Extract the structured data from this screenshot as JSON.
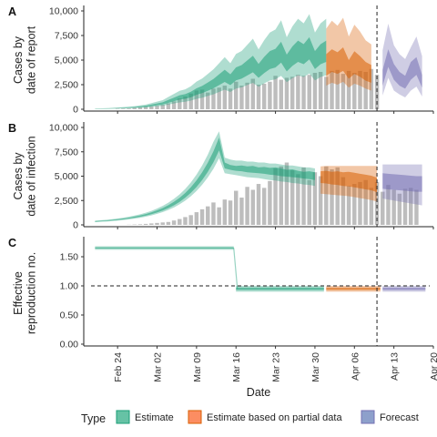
{
  "chart_data": {
    "type": "bar+area",
    "xlabel": "Date",
    "x_ticks": [
      "Feb 24",
      "Mar 02",
      "Mar 09",
      "Mar 16",
      "Mar 23",
      "Mar 30",
      "Apr 06",
      "Apr 13",
      "Apr 20"
    ],
    "x_range": {
      "start": "2020-02-18",
      "end": "2020-04-20"
    },
    "x_ticks_dates": [
      "2020-02-24",
      "2020-03-02",
      "2020-03-09",
      "2020-03-16",
      "2020-03-23",
      "2020-03-30",
      "2020-04-06",
      "2020-04-13",
      "2020-04-20"
    ],
    "forecast_start_line": "2020-04-10",
    "legend": {
      "title": "Type",
      "position": "bottom",
      "items": [
        {
          "label": "Estimate",
          "color": "#66c2a5",
          "border": "#1b9e77"
        },
        {
          "label": "Estimate based on partial data",
          "color": "#fc8d62",
          "border": "#d95f02"
        },
        {
          "label": "Forecast",
          "color": "#8da0cb",
          "border": "#7570b3"
        }
      ]
    },
    "colors": {
      "estimate": "#1b9e77",
      "partial": "#d95f02",
      "forecast": "#7570b3",
      "bars": "#bdbdbd"
    },
    "panels": [
      {
        "tag": "A",
        "ylabel": [
          "Cases by",
          "date of report"
        ],
        "ylim": [
          0,
          10000
        ],
        "y_ticks": [
          0,
          2500,
          5000,
          7500,
          10000
        ],
        "y_tick_labels": [
          "0",
          "2,500",
          "5,000",
          "7,500",
          "10,000"
        ],
        "bars": {
          "start": "2020-02-24",
          "values": [
            40,
            60,
            80,
            150,
            200,
            250,
            300,
            350,
            450,
            600,
            800,
            1100,
            1300,
            1600,
            1900,
            2000,
            1700,
            2100,
            2200,
            2400,
            2100,
            2800,
            2400,
            2700,
            3100,
            2500,
            2600,
            2800,
            3400,
            3000,
            3200,
            3300,
            3500,
            3400,
            3500,
            3700,
            3800,
            3300,
            3900,
            4000,
            3600,
            3900,
            3700,
            3900,
            3800,
            4100,
            3500
          ]
        },
        "series": [
          {
            "type": "estimate",
            "start": "2020-02-20",
            "median": [
              50,
              60,
              70,
              90,
              110,
              140,
              170,
              200,
              250,
              300,
              400,
              500,
              600,
              800,
              1000,
              1200,
              1300,
              1500,
              1800,
              2000,
              2300,
              2600,
              3000,
              3400,
              3000,
              3600,
              3800,
              4200,
              4600,
              3900,
              4500,
              5000,
              5200,
              5800,
              4700,
              5400,
              5900,
              5600,
              6200,
              5000,
              5600,
              5900
            ],
            "q25": [
              40,
              50,
              60,
              75,
              90,
              115,
              140,
              165,
              205,
              245,
              330,
              410,
              490,
              650,
              820,
              980,
              1060,
              1220,
              1470,
              1640,
              1880,
              2130,
              2450,
              2780,
              2450,
              2940,
              3110,
              3440,
              3760,
              3190,
              3680,
              4090,
              4250,
              4740,
              3840,
              4410,
              4820,
              4580,
              5070,
              4090,
              4580,
              4820
            ],
            "q75": [
              60,
              70,
              80,
              105,
              130,
              165,
              200,
              235,
              295,
              355,
              470,
              590,
              710,
              950,
              1180,
              1420,
              1540,
              1780,
              2130,
              2370,
              2720,
              3080,
              3550,
              4020,
              3550,
              4260,
              4490,
              4960,
              5440,
              4610,
              5320,
              5910,
              6150,
              6860,
              5560,
              6390,
              6980,
              6620,
              7330,
              5910,
              6620,
              6980
            ],
            "lo": [
              30,
              35,
              40,
              55,
              65,
              80,
              100,
              115,
              145,
              175,
              235,
              295,
              350,
              470,
              585,
              700,
              760,
              880,
              1050,
              1170,
              1350,
              1520,
              1760,
              1990,
              1760,
              2110,
              2220,
              2460,
              2690,
              2280,
              2630,
              2930,
              3040,
              3390,
              2750,
              3160,
              3450,
              3280,
              3630,
              2930,
              3280,
              3450
            ],
            "hi": [
              80,
              95,
              110,
              140,
              170,
              220,
              265,
              310,
              390,
              470,
              620,
              780,
              930,
              1250,
              1560,
              1870,
              2020,
              2340,
              2810,
              3120,
              3590,
              4060,
              4680,
              5300,
              4680,
              5620,
              5930,
              6550,
              7180,
              6090,
              7020,
              7800,
              8110,
              9050,
              7330,
              8420,
              9200,
              8740,
              9670,
              7800,
              8740,
              9200
            ]
          },
          {
            "type": "partial",
            "start": "2020-04-01",
            "median": [
              4400,
              4900,
              4600,
              5100,
              4000,
              4700,
              4300,
              3800,
              3500
            ],
            "q25": [
              3400,
              3800,
              3600,
              3900,
              3100,
              3600,
              3300,
              2900,
              2700
            ],
            "q75": [
              5600,
              6100,
              5800,
              6300,
              5000,
              5900,
              5400,
              4800,
              4500
            ],
            "lo": [
              2400,
              2700,
              2500,
              2800,
              2200,
              2600,
              2400,
              2100,
              1900
            ],
            "hi": [
              8200,
              9000,
              8500,
              9300,
              7400,
              8600,
              7900,
              7000,
              6600
            ]
          },
          {
            "type": "forecast",
            "start": "2020-04-11",
            "median": [
              3200,
              5200,
              3800,
              3000,
              2700,
              3900,
              4400,
              2800
            ],
            "q25": [
              2400,
              4300,
              3000,
              2400,
              2100,
              3000,
              3500,
              2200
            ],
            "q75": [
              4000,
              6100,
              4600,
              3800,
              3400,
              4800,
              5300,
              3500
            ],
            "lo": [
              1400,
              3200,
              1900,
              1500,
              1200,
              1900,
              2300,
              1300
            ],
            "hi": [
              6000,
              8700,
              6500,
              5600,
              5100,
              6300,
              7400,
              5400
            ]
          }
        ]
      },
      {
        "tag": "B",
        "ylabel": [
          "Cases by",
          "date of infection"
        ],
        "ylim": [
          0,
          10000
        ],
        "y_ticks": [
          0,
          2500,
          5000,
          7500,
          10000
        ],
        "y_tick_labels": [
          "0",
          "2,500",
          "5,000",
          "7,500",
          "10,000"
        ],
        "bars": {
          "start": "2020-02-26",
          "values": [
            20,
            40,
            60,
            100,
            150,
            200,
            250,
            300,
            450,
            600,
            800,
            1000,
            1300,
            1600,
            1900,
            2300,
            1800,
            2600,
            2500,
            3500,
            2800,
            3900,
            3600,
            4200,
            3800,
            4500,
            5800,
            6000,
            6400,
            5600,
            5200,
            5900,
            4600,
            5400,
            5000,
            6000,
            5700,
            5900,
            4900,
            4000,
            4200,
            4400,
            4600,
            3800,
            4400,
            3400,
            4100,
            3600,
            3200,
            3700,
            3800,
            3600
          ]
        },
        "series": [
          {
            "type": "estimate",
            "start": "2020-02-20",
            "median": [
              350,
              390,
              430,
              480,
              540,
              610,
              690,
              790,
              900,
              1030,
              1190,
              1380,
              1600,
              1870,
              2190,
              2570,
              3030,
              3580,
              4230,
              5000,
              5910,
              6990,
              8300,
              6100,
              5900,
              5800,
              5800,
              5700,
              5700,
              5600,
              5600,
              5500,
              5500,
              5400,
              5300,
              5300,
              5200,
              5100,
              5100,
              5000
            ],
            "q25": [
              320,
              360,
              400,
              440,
              500,
              560,
              640,
              730,
              830,
              950,
              1100,
              1270,
              1470,
              1720,
              2010,
              2360,
              2790,
              3290,
              3890,
              4600,
              5440,
              6430,
              7640,
              5800,
              5650,
              5550,
              5500,
              5400,
              5350,
              5300,
              5250,
              5150,
              5100,
              5000,
              4950,
              4900,
              4850,
              4750,
              4700,
              4600
            ],
            "q75": [
              380,
              420,
              460,
              520,
              580,
              660,
              740,
              850,
              970,
              1110,
              1280,
              1490,
              1730,
              2020,
              2370,
              2780,
              3270,
              3870,
              4570,
              5400,
              6380,
              7550,
              8960,
              6400,
              6150,
              6050,
              6100,
              6000,
              6050,
              5900,
              5950,
              5850,
              5900,
              5800,
              5650,
              5700,
              5550,
              5450,
              5500,
              5400
            ],
            "lo": [
              280,
              310,
              340,
              380,
              430,
              490,
              560,
              640,
              730,
              840,
              970,
              1130,
              1310,
              1530,
              1790,
              2110,
              2490,
              2940,
              3480,
              4120,
              4870,
              5760,
              6850,
              5300,
              5200,
              5100,
              5000,
              4900,
              4850,
              4800,
              4700,
              4600,
              4550,
              4450,
              4400,
              4300,
              4250,
              4150,
              4100,
              4000
            ],
            "hi": [
              430,
              480,
              530,
              590,
              660,
              740,
              840,
              960,
              1090,
              1250,
              1440,
              1680,
              1950,
              2280,
              2670,
              3130,
              3690,
              4360,
              5160,
              6100,
              7210,
              8530,
              9600,
              6900,
              6700,
              6600,
              6600,
              6500,
              6500,
              6400,
              6400,
              6300,
              6300,
              6200,
              6100,
              6100,
              6000,
              5900,
              5900,
              5800
            ]
          },
          {
            "type": "partial",
            "start": "2020-03-31",
            "median": [
              4900,
              4900,
              4800,
              4800,
              4700,
              4700,
              4600,
              4500,
              4400,
              4300,
              4100
            ],
            "q25": [
              4300,
              4250,
              4150,
              4100,
              4000,
              3950,
              3850,
              3750,
              3650,
              3550,
              3350
            ],
            "q75": [
              5500,
              5550,
              5450,
              5500,
              5400,
              5450,
              5350,
              5250,
              5150,
              5050,
              4850
            ],
            "lo": [
              3200,
              3150,
              3100,
              3050,
              3000,
              2950,
              2850,
              2750,
              2650,
              2550,
              2400
            ],
            "hi": [
              6000,
              6050,
              6050,
              6050,
              6050,
              6050,
              6050,
              6050,
              6050,
              6050,
              6050
            ]
          },
          {
            "type": "forecast",
            "start": "2020-04-11",
            "median": [
              4500,
              4450,
              4400,
              4350,
              4300,
              4250,
              4200,
              4200
            ],
            "q25": [
              3700,
              3650,
              3600,
              3550,
              3500,
              3450,
              3400,
              3400
            ],
            "q75": [
              5300,
              5250,
              5200,
              5150,
              5100,
              5050,
              5000,
              5000
            ],
            "lo": [
              2700,
              2600,
              2500,
              2400,
              2300,
              2200,
              2100,
              2000
            ],
            "hi": [
              6200,
              6200,
              6200,
              6200,
              6200,
              6200,
              6200,
              6200
            ]
          }
        ]
      },
      {
        "tag": "C",
        "ylabel": [
          "Effective",
          "reproduction no."
        ],
        "ylim": [
          0,
          1.75
        ],
        "y_ticks": [
          0,
          0.5,
          1.0,
          1.5
        ],
        "y_tick_labels": [
          "0.00",
          "0.50",
          "1.00",
          "1.50"
        ],
        "reference_line": 1.0,
        "series": [
          {
            "type": "estimate",
            "segments": [
              {
                "from": "2020-02-20",
                "to": "2020-03-15",
                "median": 1.65,
                "q25": 1.64,
                "q75": 1.66,
                "lo": 1.62,
                "hi": 1.68
              },
              {
                "from": "2020-03-16",
                "to": "2020-03-31",
                "median": 0.95,
                "q25": 0.93,
                "q75": 0.97,
                "lo": 0.9,
                "hi": 1.0
              }
            ],
            "step_at": "2020-03-15"
          },
          {
            "type": "partial",
            "segments": [
              {
                "from": "2020-04-01",
                "to": "2020-04-10",
                "median": 0.95,
                "q25": 0.93,
                "q75": 0.97,
                "lo": 0.9,
                "hi": 1.0
              }
            ]
          },
          {
            "type": "forecast",
            "segments": [
              {
                "from": "2020-04-11",
                "to": "2020-04-18",
                "median": 0.95,
                "q25": 0.93,
                "q75": 0.97,
                "lo": 0.9,
                "hi": 1.0
              }
            ]
          }
        ]
      }
    ]
  }
}
